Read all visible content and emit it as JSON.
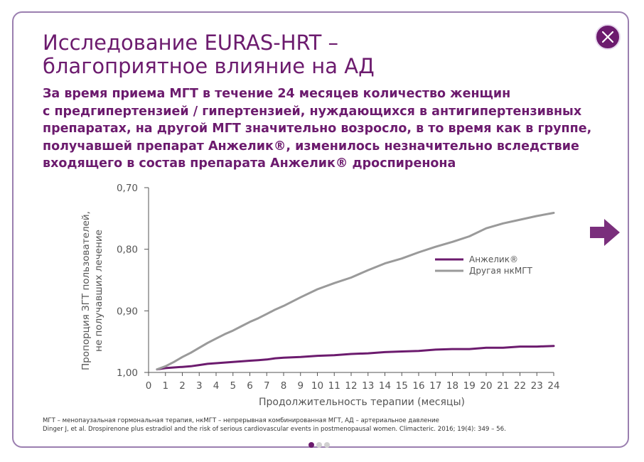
{
  "header": {
    "title_lines": [
      "Исследование EURAS-HRT –",
      "благоприятное влияние на АД"
    ],
    "subtitle_lines": [
      "За время приема МГТ в течение 24 месяцев количество женщин",
      "с предгипертензией / гипертензией, нуждающихся в антигипертензивных",
      "препаратах, на другой МГТ значительно возросло, в то время как в группе,",
      "получавшей препарат Анжелик®, изменилось незначительно вследствие",
      "входящего в состав препарата Анжелик® дроспиренона"
    ]
  },
  "footnote": {
    "lines": [
      "МГТ – менопаузальная гормональная терапия, нкМГТ – непрерывная комбинированная МГТ, АД – артериальное давление",
      "Dinger J, et al. Drospirenone plus estradiol and the risk of serious cardiovascular events in postmenopausal women. Climacteric. 2016; 19(4): 349 – 56."
    ]
  },
  "pagination": {
    "total": 3,
    "active": 0
  },
  "colors": {
    "accent": "#6c1b6e",
    "series_gray": "#9a9a9a",
    "frame": "#9b7fb0"
  },
  "icons": {
    "close": "close-icon",
    "next": "arrow-right-icon"
  },
  "chart_data": {
    "type": "line",
    "xlabel": "Продолжительность терапии (месяцы)",
    "ylabel_lines": [
      "Пропорция ЗГТ пользователей,",
      "не получавших лечение"
    ],
    "xlim": [
      0,
      24
    ],
    "ylim": [
      0.7,
      1.0
    ],
    "y_inverted": true,
    "x_ticks": [
      0,
      1,
      2,
      3,
      4,
      5,
      6,
      7,
      8,
      9,
      10,
      11,
      12,
      13,
      14,
      15,
      16,
      17,
      18,
      19,
      20,
      21,
      22,
      23,
      24
    ],
    "y_ticks": [
      0.7,
      0.8,
      0.9,
      1.0
    ],
    "y_tick_labels": [
      "0,70",
      "0,80",
      "0,90",
      "1,00"
    ],
    "legend_position": "right",
    "grid": false,
    "series": [
      {
        "name": "Анжелик®",
        "color": "#6c1b6e",
        "x": [
          0.5,
          1,
          2,
          2.5,
          3,
          3.5,
          4,
          4.5,
          5,
          5.5,
          6,
          6.5,
          7,
          7.5,
          8,
          9,
          10,
          11,
          12,
          13,
          14,
          15,
          16,
          17,
          18,
          19,
          20,
          21,
          22,
          23,
          24
        ],
        "y": [
          0.995,
          0.993,
          0.991,
          0.99,
          0.988,
          0.986,
          0.985,
          0.984,
          0.983,
          0.982,
          0.981,
          0.98,
          0.979,
          0.977,
          0.976,
          0.975,
          0.973,
          0.972,
          0.97,
          0.969,
          0.967,
          0.966,
          0.965,
          0.963,
          0.962,
          0.962,
          0.96,
          0.96,
          0.958,
          0.958,
          0.957
        ]
      },
      {
        "name": "Другая нкМГТ",
        "color": "#9a9a9a",
        "x": [
          0.5,
          1,
          1.5,
          2,
          2.5,
          3,
          3.5,
          4,
          4.5,
          5,
          5.5,
          6,
          6.5,
          7,
          7.5,
          8,
          9,
          10,
          11,
          12,
          13,
          14,
          15,
          16,
          17,
          18,
          19,
          20,
          21,
          22,
          23,
          24
        ],
        "y": [
          0.995,
          0.99,
          0.983,
          0.975,
          0.968,
          0.96,
          0.952,
          0.945,
          0.938,
          0.932,
          0.925,
          0.918,
          0.912,
          0.905,
          0.898,
          0.892,
          0.878,
          0.865,
          0.855,
          0.846,
          0.834,
          0.823,
          0.815,
          0.805,
          0.796,
          0.788,
          0.779,
          0.766,
          0.758,
          0.752,
          0.746,
          0.741
        ]
      }
    ]
  }
}
